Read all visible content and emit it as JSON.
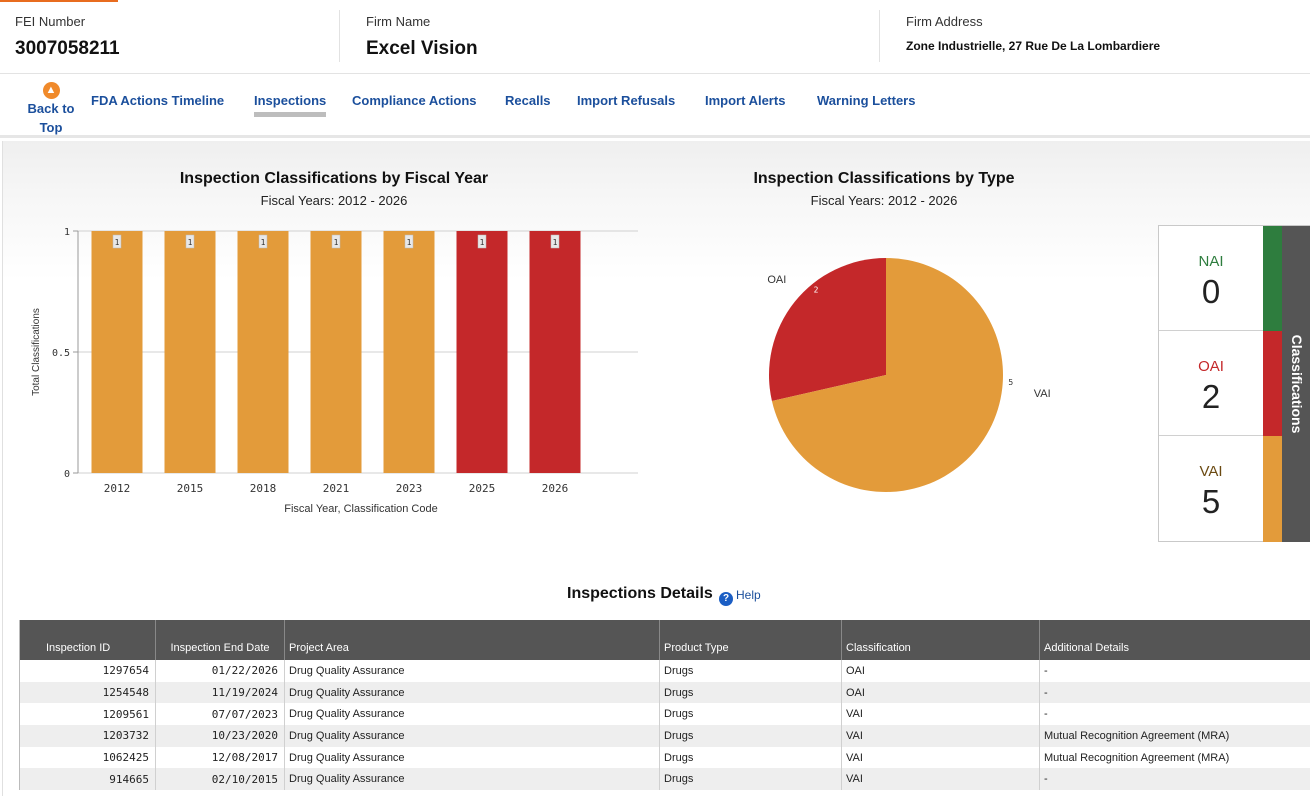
{
  "header": {
    "fei_label": "FEI Number",
    "fei_value": "3007058211",
    "firm_label": "Firm Name",
    "firm_value": "Excel Vision",
    "address_label": "Firm Address",
    "address_value": "Zone Industrielle, 27 Rue De La Lombardiere"
  },
  "nav": {
    "back_line1": "Back to",
    "back_line2": "Top",
    "links": [
      "FDA Actions Timeline",
      "Inspections",
      "Compliance Actions",
      "Recalls",
      "Import Refusals",
      "Import Alerts",
      "Warning Letters"
    ],
    "active": "Inspections"
  },
  "bar_panel": {
    "title": "Inspection Classifications by Fiscal Year",
    "subtitle": "Fiscal Years: 2012 - 2026"
  },
  "pie_panel": {
    "title": "Inspection Classifications by Type",
    "subtitle": "Fiscal Years: 2012 - 2026"
  },
  "colors": {
    "vai": "#e39b3a",
    "oai": "#c4282a",
    "nai": "#2e7d3e",
    "link": "#1b4f9c",
    "accent": "#e86c1f"
  },
  "chart_data": [
    {
      "type": "bar",
      "title": "Inspection Classifications by Fiscal Year",
      "subtitle": "Fiscal Years: 2012 - 2026",
      "xlabel": "Fiscal Year, Classification Code",
      "ylabel": "Total Classifications",
      "categories": [
        "2012",
        "2015",
        "2018",
        "2021",
        "2023",
        "2025",
        "2026"
      ],
      "values": [
        1,
        1,
        1,
        1,
        1,
        1,
        1
      ],
      "classifications": [
        "VAI",
        "VAI",
        "VAI",
        "VAI",
        "VAI",
        "OAI",
        "OAI"
      ],
      "ylim": [
        0,
        1
      ],
      "yticks": [
        "0",
        "0.5",
        "1"
      ],
      "grid": true
    },
    {
      "type": "pie",
      "title": "Inspection Classifications by Type",
      "subtitle": "Fiscal Years: 2012 - 2026",
      "labels": [
        "OAI",
        "VAI"
      ],
      "values": [
        2,
        5
      ]
    }
  ],
  "classifications_panel": {
    "tab_label": "Classifications",
    "items": [
      {
        "name": "NAI",
        "count": "0"
      },
      {
        "name": "OAI",
        "count": "2"
      },
      {
        "name": "VAI",
        "count": "5"
      }
    ]
  },
  "details": {
    "title": "Inspections Details",
    "help": "Help",
    "columns": [
      "Inspection ID",
      "Inspection End Date",
      "Project Area",
      "Product Type",
      "Classification",
      "Additional Details"
    ],
    "rows": [
      [
        "1297654",
        "01/22/2026",
        "Drug Quality Assurance",
        "Drugs",
        "OAI",
        "-"
      ],
      [
        "1254548",
        "11/19/2024",
        "Drug Quality Assurance",
        "Drugs",
        "OAI",
        "-"
      ],
      [
        "1209561",
        "07/07/2023",
        "Drug Quality Assurance",
        "Drugs",
        "VAI",
        "-"
      ],
      [
        "1203732",
        "10/23/2020",
        "Drug Quality Assurance",
        "Drugs",
        "VAI",
        "Mutual Recognition Agreement (MRA)"
      ],
      [
        "1062425",
        "12/08/2017",
        "Drug Quality Assurance",
        "Drugs",
        "VAI",
        "Mutual Recognition Agreement (MRA)"
      ],
      [
        "914665",
        "02/10/2015",
        "Drug Quality Assurance",
        "Drugs",
        "VAI",
        "-"
      ]
    ]
  }
}
